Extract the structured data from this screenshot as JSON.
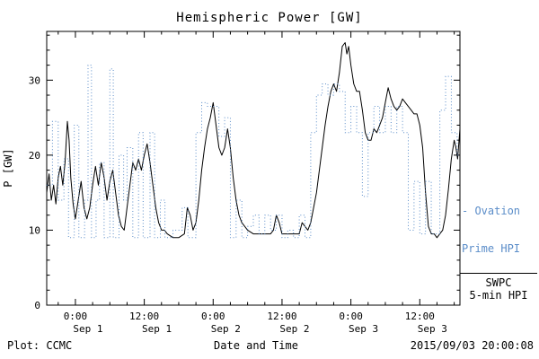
{
  "title": "Hemispheric Power [GW]",
  "footer": {
    "plot_credit": "Plot: CCMC",
    "xlabel": "Date and Time",
    "timestamp": "2015/09/03 20:00:08"
  },
  "legend": {
    "ovation": {
      "line1": "- Ovation",
      "line2": "Prime HPI"
    },
    "swpc": {
      "line1": "SWPC",
      "line2": "5-min HPI"
    }
  },
  "colors": {
    "ovation": "#5b8dc9",
    "swpc": "#000000",
    "background": "#ffffff"
  },
  "chart_data": {
    "type": "line",
    "title": "Hemispheric Power [GW]",
    "xlabel": "Date and Time",
    "ylabel": "P [GW]",
    "x_units": "hours from 2015 Sep 1 00:00",
    "xlim_hours": [
      -5,
      67
    ],
    "ylim": [
      0,
      36.5
    ],
    "y_ticks": [
      0,
      10,
      20,
      30
    ],
    "y_minor_step": 2,
    "x_minor_step": 3,
    "grid": false,
    "legend_position": "right-outside",
    "x_ticks": [
      {
        "hours": 0,
        "time": "0:00",
        "date": "Sep 1"
      },
      {
        "hours": 12,
        "time": "12:00",
        "date": "Sep 1"
      },
      {
        "hours": 24,
        "time": "0:00",
        "date": "Sep 2"
      },
      {
        "hours": 36,
        "time": "12:00",
        "date": "Sep 2"
      },
      {
        "hours": 48,
        "time": "0:00",
        "date": "Sep 3"
      },
      {
        "hours": 60,
        "time": "12:00",
        "date": "Sep 3"
      }
    ],
    "series": [
      {
        "name": "SWPC 5-min HPI",
        "style": "solid",
        "color": "#000000",
        "points": [
          [
            -5,
            15
          ],
          [
            -4.6,
            17.5
          ],
          [
            -4.2,
            14
          ],
          [
            -3.8,
            16
          ],
          [
            -3.4,
            13.5
          ],
          [
            -3,
            17
          ],
          [
            -2.6,
            18.5
          ],
          [
            -2.2,
            16
          ],
          [
            -1.8,
            19
          ],
          [
            -1.4,
            24.5
          ],
          [
            -1.1,
            22
          ],
          [
            -0.8,
            17
          ],
          [
            -0.4,
            13.5
          ],
          [
            0,
            11.5
          ],
          [
            0.5,
            14
          ],
          [
            1,
            16.5
          ],
          [
            1.5,
            13
          ],
          [
            2,
            11.5
          ],
          [
            2.5,
            13
          ],
          [
            3,
            16
          ],
          [
            3.5,
            18.5
          ],
          [
            4,
            16
          ],
          [
            4.5,
            19
          ],
          [
            5,
            17
          ],
          [
            5.5,
            14
          ],
          [
            6,
            16.5
          ],
          [
            6.5,
            18
          ],
          [
            7,
            15
          ],
          [
            7.5,
            12
          ],
          [
            8,
            10.5
          ],
          [
            8.5,
            10
          ],
          [
            9,
            13
          ],
          [
            9.5,
            16
          ],
          [
            10,
            19
          ],
          [
            10.5,
            18
          ],
          [
            11,
            19.5
          ],
          [
            11.5,
            18
          ],
          [
            12,
            20
          ],
          [
            12.5,
            21.5
          ],
          [
            13,
            19
          ],
          [
            13.5,
            16
          ],
          [
            14,
            13
          ],
          [
            14.5,
            11
          ],
          [
            15,
            10
          ],
          [
            15.5,
            10
          ],
          [
            16,
            9.5
          ],
          [
            17,
            9
          ],
          [
            18,
            9
          ],
          [
            19,
            9.5
          ],
          [
            19.5,
            13
          ],
          [
            20,
            12
          ],
          [
            20.5,
            10
          ],
          [
            21,
            11
          ],
          [
            21.5,
            14
          ],
          [
            22,
            18
          ],
          [
            22.5,
            21
          ],
          [
            23,
            23.5
          ],
          [
            23.5,
            25
          ],
          [
            24,
            27
          ],
          [
            24.5,
            24
          ],
          [
            25,
            21
          ],
          [
            25.5,
            20
          ],
          [
            26,
            21
          ],
          [
            26.5,
            23.5
          ],
          [
            27,
            21
          ],
          [
            27.5,
            17
          ],
          [
            28,
            14
          ],
          [
            28.5,
            12
          ],
          [
            29,
            11
          ],
          [
            30,
            10
          ],
          [
            31,
            9.5
          ],
          [
            32,
            9.5
          ],
          [
            33,
            9.5
          ],
          [
            34,
            9.5
          ],
          [
            34.5,
            10
          ],
          [
            35,
            12
          ],
          [
            35.5,
            11
          ],
          [
            36,
            9.5
          ],
          [
            37,
            9.5
          ],
          [
            38,
            9.5
          ],
          [
            39,
            9.5
          ],
          [
            39.5,
            11
          ],
          [
            40,
            10.5
          ],
          [
            40.5,
            10
          ],
          [
            41,
            11
          ],
          [
            41.5,
            13
          ],
          [
            42,
            15
          ],
          [
            42.5,
            18
          ],
          [
            43,
            21
          ],
          [
            43.5,
            24
          ],
          [
            44,
            26.5
          ],
          [
            44.5,
            28.5
          ],
          [
            45,
            29.5
          ],
          [
            45.5,
            28.5
          ],
          [
            46,
            31
          ],
          [
            46.5,
            34.5
          ],
          [
            47,
            35
          ],
          [
            47.3,
            33.5
          ],
          [
            47.6,
            34.5
          ],
          [
            48,
            32
          ],
          [
            48.5,
            29.5
          ],
          [
            49,
            28.5
          ],
          [
            49.5,
            28.5
          ],
          [
            50,
            26
          ],
          [
            50.5,
            23
          ],
          [
            51,
            22
          ],
          [
            51.5,
            22
          ],
          [
            52,
            23.5
          ],
          [
            52.5,
            23
          ],
          [
            53,
            24
          ],
          [
            53.5,
            25
          ],
          [
            54,
            27
          ],
          [
            54.5,
            29
          ],
          [
            55,
            27.5
          ],
          [
            55.5,
            26.5
          ],
          [
            56,
            26
          ],
          [
            56.5,
            26.5
          ],
          [
            57,
            27.5
          ],
          [
            57.5,
            27
          ],
          [
            58,
            26.5
          ],
          [
            58.5,
            26
          ],
          [
            59,
            25.5
          ],
          [
            59.5,
            25.5
          ],
          [
            60,
            24
          ],
          [
            60.5,
            21
          ],
          [
            61,
            15
          ],
          [
            61.5,
            10.5
          ],
          [
            62,
            9.5
          ],
          [
            62.5,
            9.5
          ],
          [
            63,
            9
          ],
          [
            63.5,
            9.5
          ],
          [
            64,
            10
          ],
          [
            64.5,
            12
          ],
          [
            65,
            15.5
          ],
          [
            65.5,
            19.5
          ],
          [
            66,
            22
          ],
          [
            66.3,
            21
          ],
          [
            66.6,
            19.5
          ],
          [
            67,
            23.5
          ]
        ]
      },
      {
        "name": "Ovation Prime HPI",
        "style": "dotted-step",
        "color": "#5b8dc9",
        "points": [
          [
            -5,
            16
          ],
          [
            -4,
            24.5
          ],
          [
            -3,
            14
          ],
          [
            -2,
            19.5
          ],
          [
            -1.2,
            9
          ],
          [
            -0.2,
            24
          ],
          [
            0.6,
            9
          ],
          [
            1.6,
            14
          ],
          [
            2.2,
            32
          ],
          [
            2.8,
            9
          ],
          [
            3.6,
            14
          ],
          [
            4.2,
            19
          ],
          [
            5,
            9
          ],
          [
            6,
            31.5
          ],
          [
            6.6,
            9
          ],
          [
            7.6,
            20
          ],
          [
            8.4,
            14
          ],
          [
            9,
            21
          ],
          [
            10,
            9
          ],
          [
            11,
            23
          ],
          [
            11.8,
            9
          ],
          [
            13,
            23
          ],
          [
            13.8,
            9
          ],
          [
            14.8,
            14
          ],
          [
            15.6,
            9
          ],
          [
            17,
            10
          ],
          [
            18.6,
            13
          ],
          [
            19.6,
            9
          ],
          [
            21,
            23
          ],
          [
            22,
            27
          ],
          [
            23,
            26.5
          ],
          [
            24,
            26.5
          ],
          [
            25,
            22.5
          ],
          [
            26,
            25
          ],
          [
            27,
            9
          ],
          [
            28,
            14
          ],
          [
            29,
            9
          ],
          [
            30,
            10.5
          ],
          [
            31,
            12
          ],
          [
            32,
            9.5
          ],
          [
            33,
            12
          ],
          [
            34,
            10
          ],
          [
            35,
            12
          ],
          [
            36,
            9
          ],
          [
            37,
            10
          ],
          [
            38,
            9
          ],
          [
            39,
            12
          ],
          [
            40,
            9
          ],
          [
            41,
            23
          ],
          [
            42,
            28
          ],
          [
            43,
            29.5
          ],
          [
            44,
            28
          ],
          [
            45,
            29.5
          ],
          [
            46,
            28.5
          ],
          [
            47,
            23
          ],
          [
            48,
            26.5
          ],
          [
            49,
            23
          ],
          [
            50,
            14.5
          ],
          [
            51,
            23
          ],
          [
            52,
            26.5
          ],
          [
            53,
            23
          ],
          [
            54,
            26.5
          ],
          [
            55,
            23
          ],
          [
            56,
            26.5
          ],
          [
            57,
            23
          ],
          [
            58,
            10
          ],
          [
            59,
            16.5
          ],
          [
            60,
            9.5
          ],
          [
            61,
            16.5
          ],
          [
            62,
            9.5
          ],
          [
            63,
            9.5
          ],
          [
            63.5,
            26
          ],
          [
            64.5,
            30.5
          ],
          [
            65.5,
            23
          ],
          [
            66.5,
            20
          ]
        ]
      }
    ]
  }
}
